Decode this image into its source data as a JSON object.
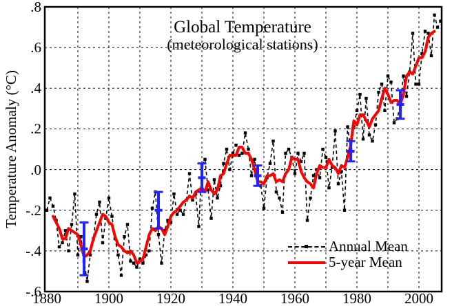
{
  "chart_data": {
    "type": "line",
    "title": "Global Temperature",
    "subtitle": "(meteorological stations)",
    "ylabel": "Temperature Anomaly (°C)",
    "xlim": [
      1879.3,
      2007.3
    ],
    "ylim": [
      -0.6,
      0.8
    ],
    "grid": "dashed",
    "legend_position": "lower-right-inside",
    "x_gridline_years": [
      1890,
      1900,
      1910,
      1920,
      1930,
      1940,
      1950,
      1960,
      1970,
      1980,
      1990,
      2000
    ],
    "y_gridline_values": [
      0.6,
      0.4,
      0.2,
      0.0,
      -0.2,
      -0.4
    ],
    "x_tick_labels": [
      {
        "year": 1880,
        "label": "1880"
      },
      {
        "year": 1900,
        "label": "1900"
      },
      {
        "year": 1920,
        "label": "1920"
      },
      {
        "year": 1940,
        "label": "1940"
      },
      {
        "year": 1960,
        "label": "1960"
      },
      {
        "year": 1980,
        "label": "1980"
      },
      {
        "year": 2000,
        "label": "2000"
      }
    ],
    "y_ticks": [
      {
        "v": 0.8,
        "label": ".8"
      },
      {
        "v": 0.6,
        "label": ".6"
      },
      {
        "v": 0.4,
        "label": ".4"
      },
      {
        "v": 0.2,
        "label": ".2"
      },
      {
        "v": 0.0,
        "label": ".0"
      },
      {
        "v": -0.2,
        "label": "-.2"
      },
      {
        "v": -0.4,
        "label": "-.4"
      },
      {
        "v": -0.6,
        "label": "-.6"
      }
    ],
    "series": [
      {
        "name": "Annual Mean",
        "color": "#000000",
        "style": "dashed-line-with-square-markers",
        "start_year": 1880,
        "values": [
          -0.2,
          -0.14,
          -0.18,
          -0.25,
          -0.38,
          -0.36,
          -0.3,
          -0.4,
          -0.27,
          -0.12,
          -0.42,
          -0.33,
          -0.45,
          -0.55,
          -0.42,
          -0.34,
          -0.22,
          -0.16,
          -0.36,
          -0.24,
          -0.14,
          -0.23,
          -0.34,
          -0.42,
          -0.52,
          -0.33,
          -0.27,
          -0.45,
          -0.46,
          -0.48,
          -0.44,
          -0.46,
          -0.42,
          -0.4,
          -0.19,
          -0.11,
          -0.32,
          -0.46,
          -0.3,
          -0.25,
          -0.26,
          -0.12,
          -0.22,
          -0.2,
          -0.22,
          -0.15,
          -0.02,
          -0.15,
          -0.12,
          -0.28,
          0.02,
          0.05,
          -0.1,
          -0.24,
          -0.05,
          -0.14,
          -0.08,
          0.03,
          0.1,
          0.0,
          0.08,
          0.12,
          0.07,
          0.08,
          0.18,
          0.1,
          -0.03,
          0.05,
          -0.06,
          -0.08,
          -0.19,
          -0.04,
          0.03,
          0.14,
          -0.11,
          -0.14,
          -0.21,
          0.08,
          0.1,
          0.06,
          -0.02,
          0.08,
          0.04,
          0.08,
          -0.25,
          -0.14,
          -0.03,
          0.0,
          -0.04,
          0.1,
          0.06,
          -0.09,
          0.01,
          0.19,
          -0.07,
          -0.01,
          -0.2,
          0.21,
          0.1,
          0.21,
          0.29,
          0.37,
          0.15,
          0.35,
          0.17,
          0.14,
          0.22,
          0.38,
          0.42,
          0.29,
          0.46,
          0.43,
          0.23,
          0.25,
          0.32,
          0.46,
          0.36,
          0.48,
          0.67,
          0.42,
          0.42,
          0.57,
          0.68,
          0.67,
          0.56,
          0.76,
          0.7,
          0.73
        ]
      },
      {
        "name": "5-year Mean",
        "color": "#ff0000",
        "style": "solid",
        "start_year": 1882,
        "values": [
          -0.23,
          -0.26,
          -0.29,
          -0.34,
          -0.34,
          -0.29,
          -0.3,
          -0.31,
          -0.32,
          -0.37,
          -0.43,
          -0.42,
          -0.4,
          -0.34,
          -0.3,
          -0.26,
          -0.22,
          -0.23,
          -0.26,
          -0.27,
          -0.33,
          -0.37,
          -0.38,
          -0.4,
          -0.41,
          -0.4,
          -0.42,
          -0.46,
          -0.45,
          -0.44,
          -0.38,
          -0.32,
          -0.29,
          -0.3,
          -0.28,
          -0.29,
          -0.32,
          -0.28,
          -0.23,
          -0.21,
          -0.2,
          -0.18,
          -0.16,
          -0.15,
          -0.13,
          -0.14,
          -0.11,
          -0.1,
          -0.09,
          -0.11,
          -0.06,
          -0.1,
          -0.12,
          -0.1,
          -0.03,
          -0.02,
          0.03,
          0.07,
          0.07,
          0.07,
          0.11,
          0.11,
          0.08,
          0.08,
          0.05,
          0.0,
          -0.06,
          -0.06,
          -0.07,
          -0.03,
          -0.03,
          -0.02,
          -0.06,
          -0.05,
          -0.06,
          -0.02,
          0.0,
          0.06,
          0.05,
          0.05,
          -0.01,
          -0.04,
          -0.06,
          -0.07,
          -0.09,
          -0.02,
          0.02,
          0.01,
          0.01,
          0.05,
          0.02,
          0.01,
          -0.02,
          0.02,
          0.01,
          0.06,
          0.12,
          0.24,
          0.22,
          0.27,
          0.27,
          0.24,
          0.21,
          0.25,
          0.27,
          0.29,
          0.35,
          0.4,
          0.37,
          0.33,
          0.34,
          0.34,
          0.32,
          0.37,
          0.46,
          0.48,
          0.47,
          0.51,
          0.55,
          0.55,
          0.58,
          0.65,
          0.67,
          0.68
        ]
      }
    ],
    "error_bars": {
      "color": "#2222ff",
      "points": [
        {
          "year": 1892,
          "center": -0.39,
          "half": 0.13
        },
        {
          "year": 1916,
          "center": -0.2,
          "half": 0.09
        },
        {
          "year": 1930,
          "center": -0.04,
          "half": 0.07
        },
        {
          "year": 1948,
          "center": -0.03,
          "half": 0.05
        },
        {
          "year": 1978,
          "center": 0.09,
          "half": 0.05
        },
        {
          "year": 1994,
          "center": 0.32,
          "half": 0.07
        }
      ]
    }
  }
}
